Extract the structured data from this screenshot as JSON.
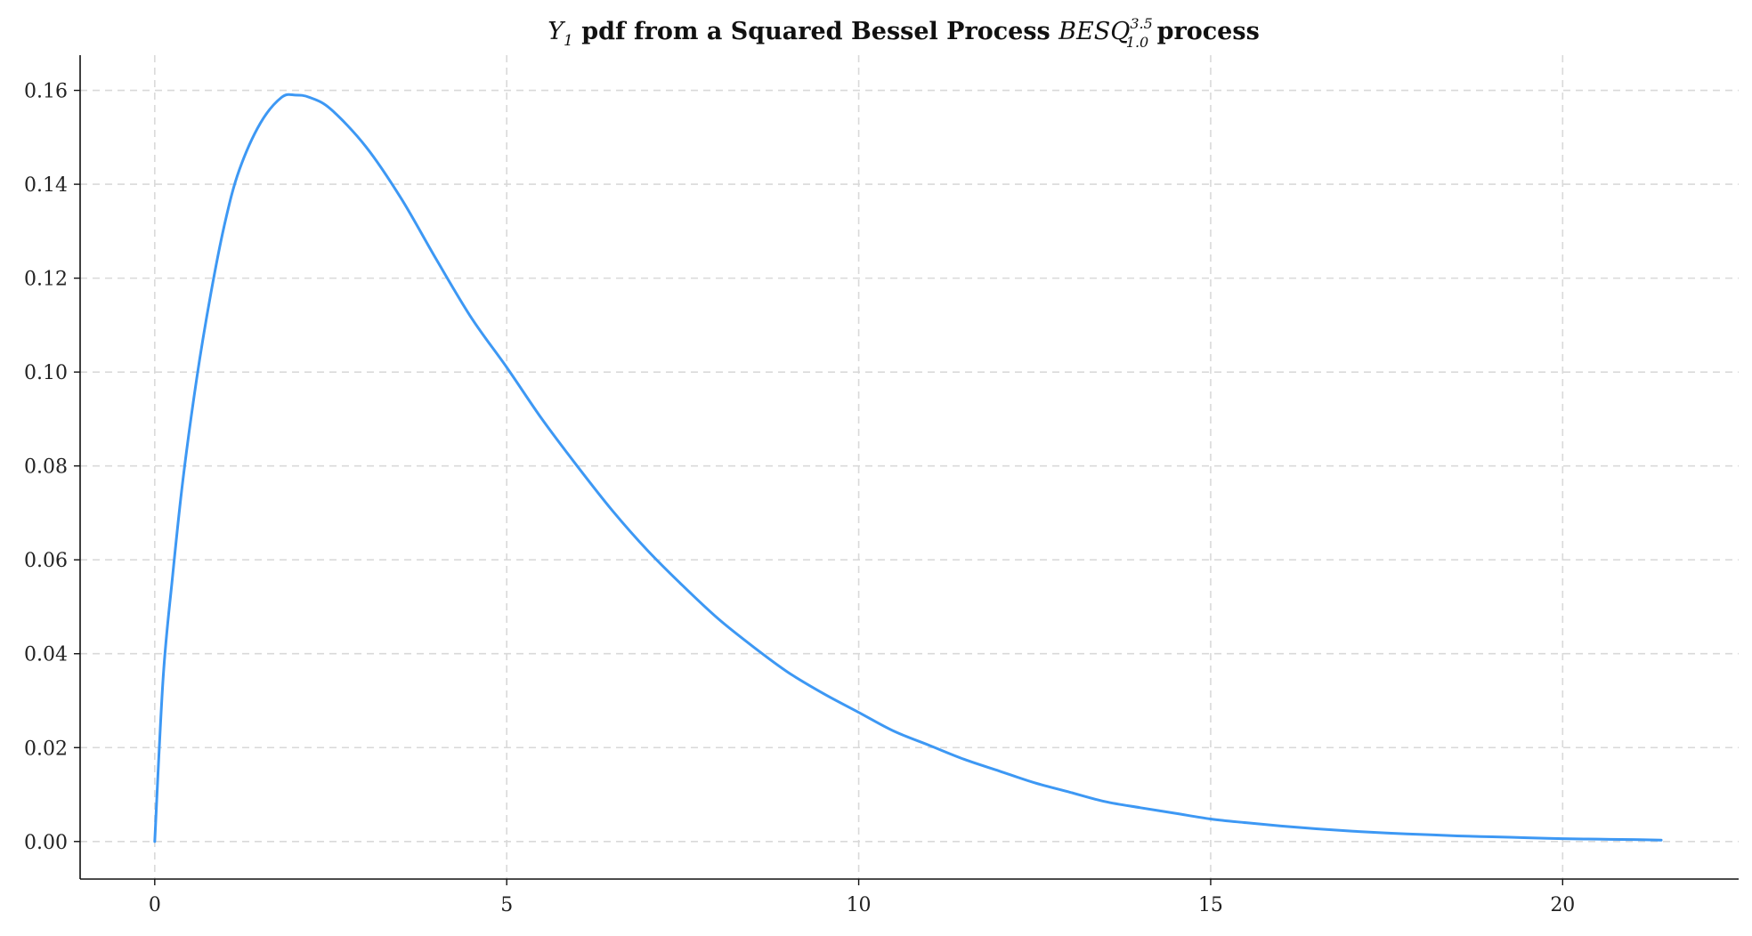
{
  "chart_data": {
    "type": "line",
    "title": {
      "math_y": "Y",
      "math_y_sub": "1",
      "text_1": " pdf from a Squared Bessel Process ",
      "math_proc": "BESQ",
      "math_sup": "3.5",
      "math_sub": "1.0",
      "text_2": " process"
    },
    "xlabel": "",
    "ylabel": "",
    "xlim": [
      -1.06,
      22.5
    ],
    "ylim": [
      -0.008,
      0.1675
    ],
    "x_ticks": [
      0,
      5,
      10,
      15,
      20
    ],
    "x_tick_labels": [
      "0",
      "5",
      "10",
      "15",
      "20"
    ],
    "y_ticks": [
      0.0,
      0.02,
      0.04,
      0.06,
      0.08,
      0.1,
      0.12,
      0.14,
      0.16
    ],
    "y_tick_labels": [
      "0.00",
      "0.02",
      "0.04",
      "0.06",
      "0.08",
      "0.10",
      "0.12",
      "0.14",
      "0.16"
    ],
    "grid": true,
    "legend": "none",
    "series": [
      {
        "color": "#3d98f4",
        "x": [
          0,
          0.12,
          0.25,
          0.4,
          0.6,
          0.8,
          1.0,
          1.2,
          1.5,
          1.8,
          2.0,
          2.2,
          2.5,
          3.0,
          3.5,
          4.0,
          4.5,
          5.0,
          5.5,
          6.0,
          6.5,
          7.0,
          7.5,
          8.0,
          8.5,
          9.0,
          9.5,
          10.0,
          10.5,
          11.0,
          11.5,
          12.0,
          12.5,
          13.0,
          13.5,
          14.0,
          14.5,
          15.0,
          15.5,
          16.0,
          16.5,
          17.0,
          17.5,
          18.0,
          18.5,
          19.0,
          19.5,
          20.0,
          20.5,
          21.0,
          21.4
        ],
        "y": [
          0.0,
          0.035,
          0.056,
          0.077,
          0.099,
          0.117,
          0.132,
          0.143,
          0.153,
          0.1585,
          0.159,
          0.1585,
          0.156,
          0.148,
          0.137,
          0.124,
          0.1115,
          0.101,
          0.09,
          0.08,
          0.0705,
          0.062,
          0.0545,
          0.0475,
          0.0415,
          0.036,
          0.0315,
          0.0275,
          0.0235,
          0.0205,
          0.0175,
          0.015,
          0.0125,
          0.0105,
          0.0085,
          0.0072,
          0.006,
          0.0048,
          0.004,
          0.0033,
          0.0027,
          0.0022,
          0.0018,
          0.0015,
          0.0012,
          0.001,
          0.0008,
          0.0006,
          0.0005,
          0.0004,
          0.0003
        ]
      }
    ]
  }
}
